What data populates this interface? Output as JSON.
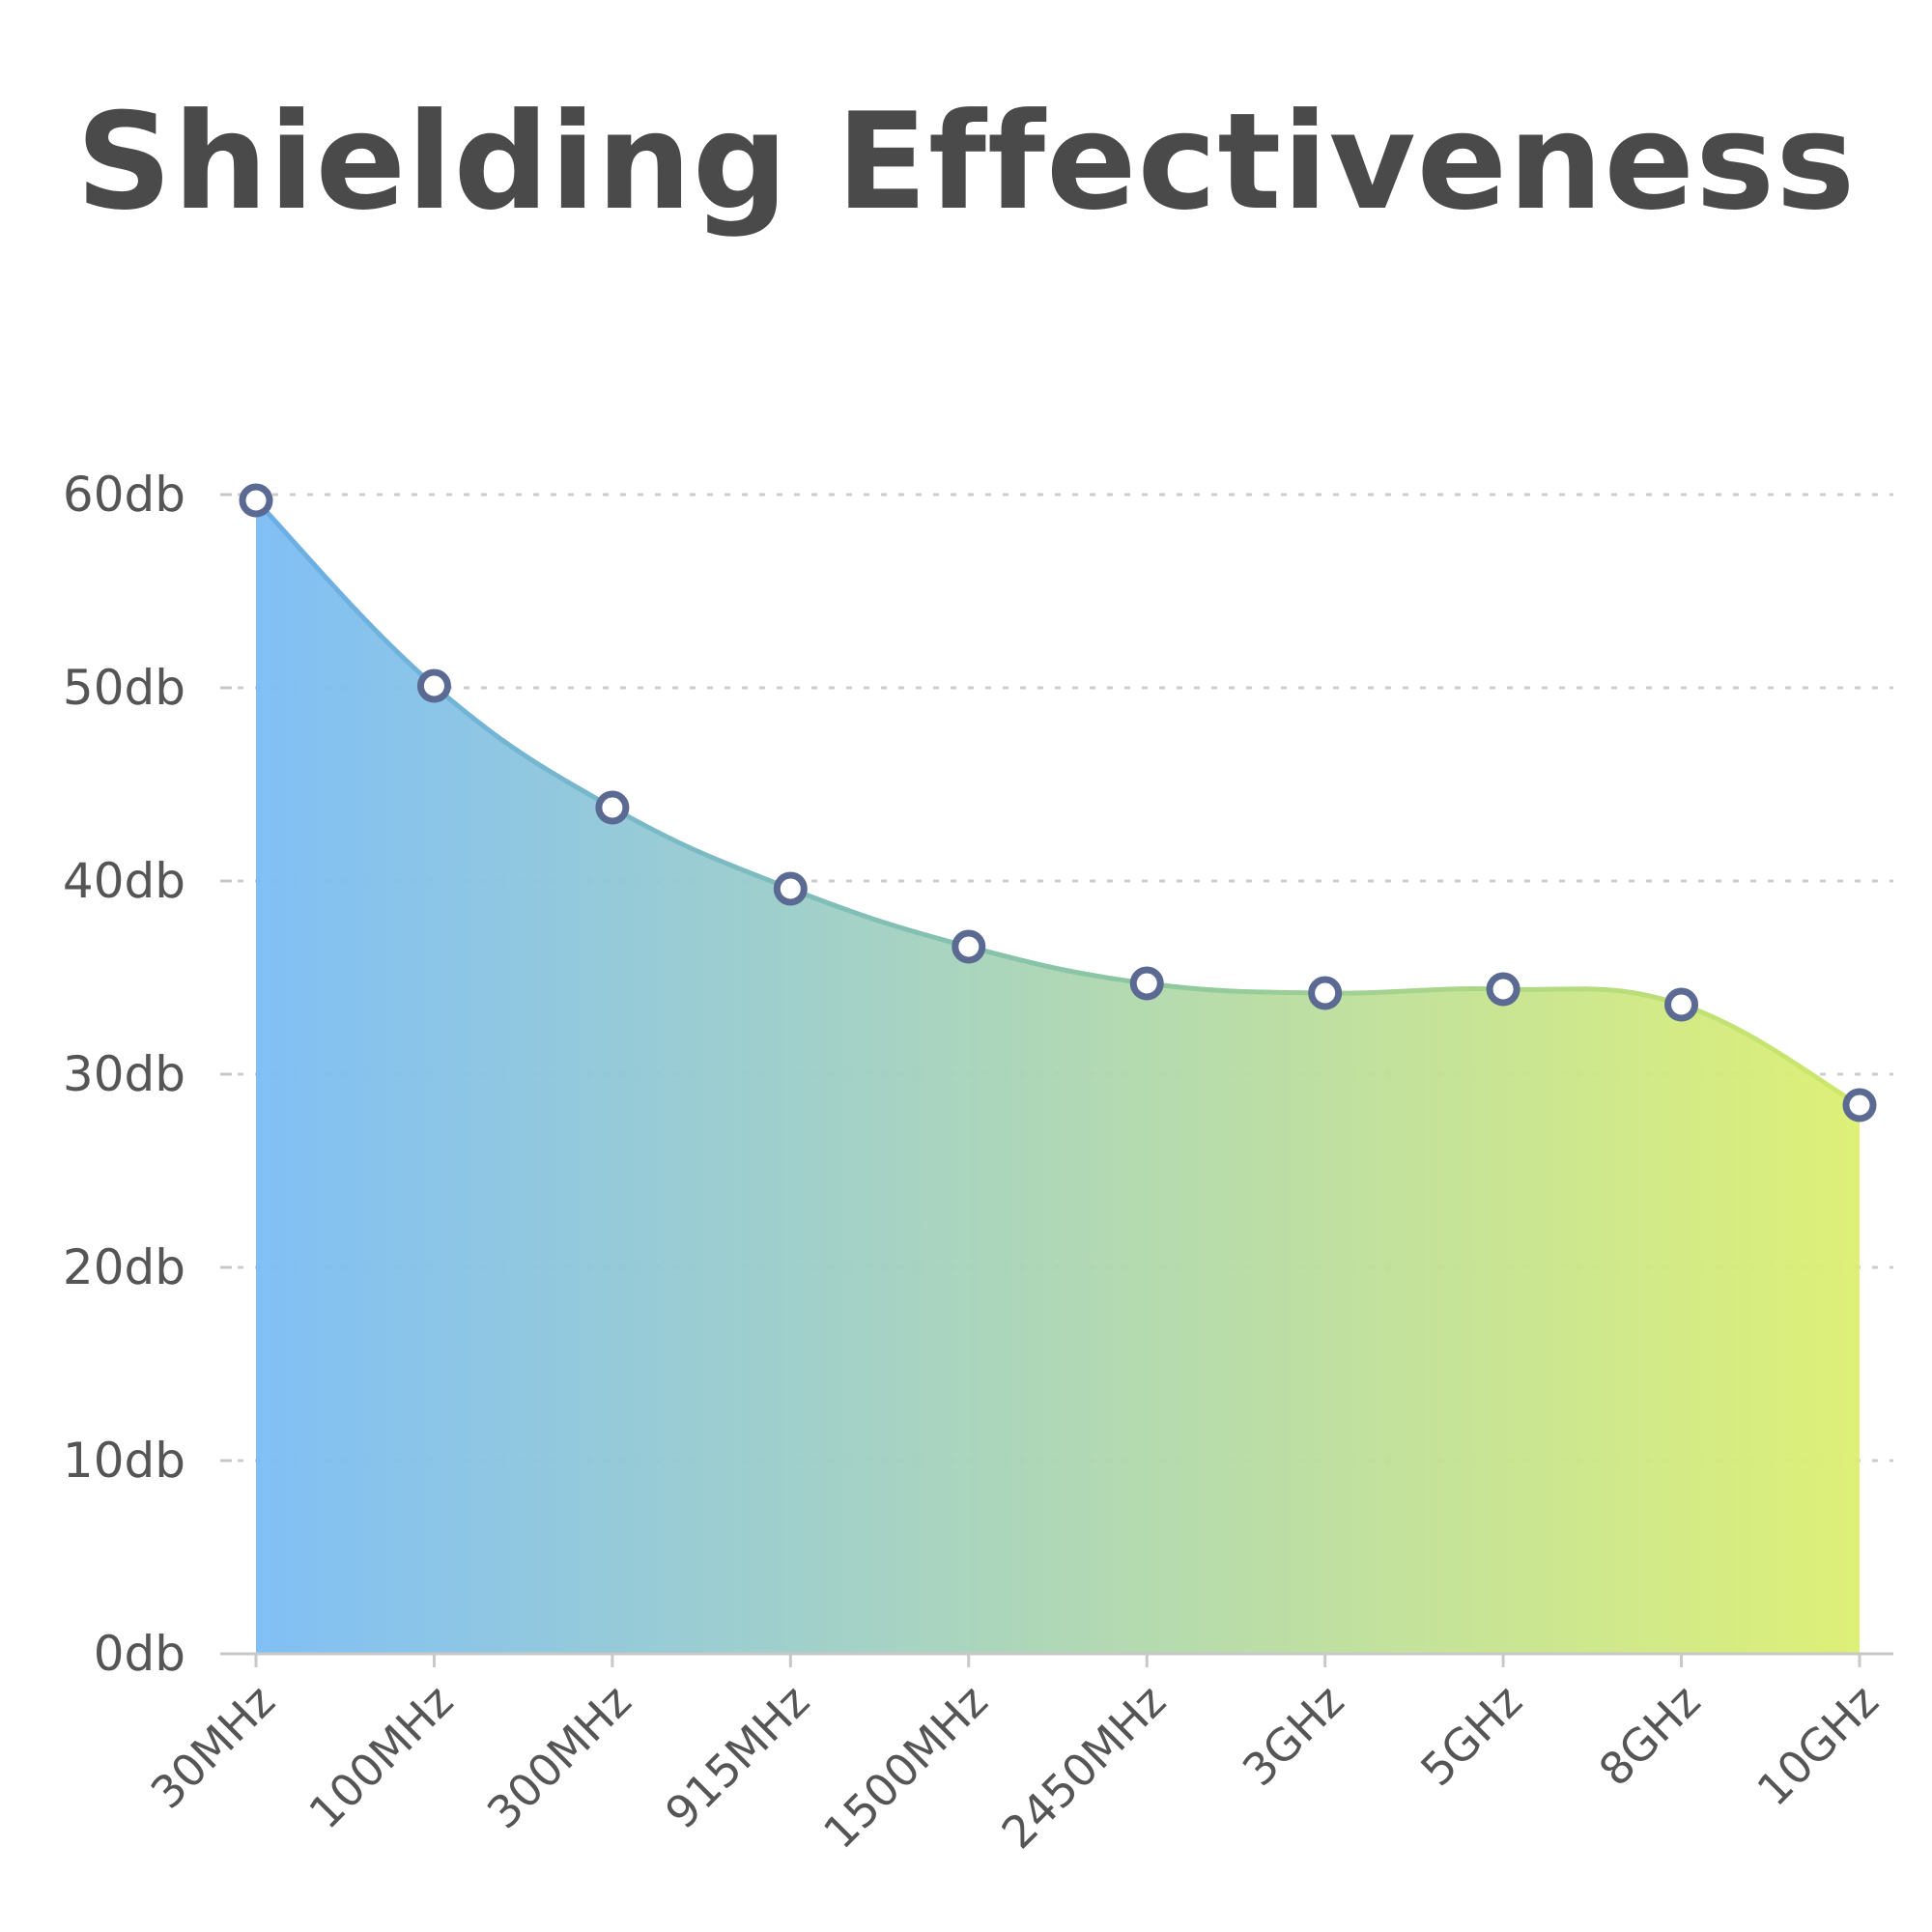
{
  "chart_data": {
    "type": "area",
    "title": "Shielding Effectiveness",
    "xlabel": "",
    "ylabel": "",
    "categories": [
      "30MHz",
      "100MHz",
      "300MHz",
      "915MHz",
      "1500MHz",
      "2450MHz",
      "3GHz",
      "5GHz",
      "8GHz",
      "10GHz"
    ],
    "y_tick_labels": [
      "0db",
      "10db",
      "20db",
      "30db",
      "40db",
      "50db",
      "60db"
    ],
    "y_ticks": [
      0,
      10,
      20,
      30,
      40,
      50,
      60
    ],
    "ylim": [
      0,
      60
    ],
    "grid": true,
    "series": [
      {
        "values": [
          59.7,
          50.1,
          43.8,
          39.6,
          36.6,
          34.7,
          34.2,
          34.4,
          33.6,
          28.4
        ]
      }
    ],
    "colors": {
      "gradient_start": "#7abcf5",
      "gradient_end": "#dcef70",
      "marker_stroke": "#5a6a92",
      "marker_fill": "#ffffff",
      "grid": "#cccccc",
      "axis": "#c8c8c8"
    }
  }
}
